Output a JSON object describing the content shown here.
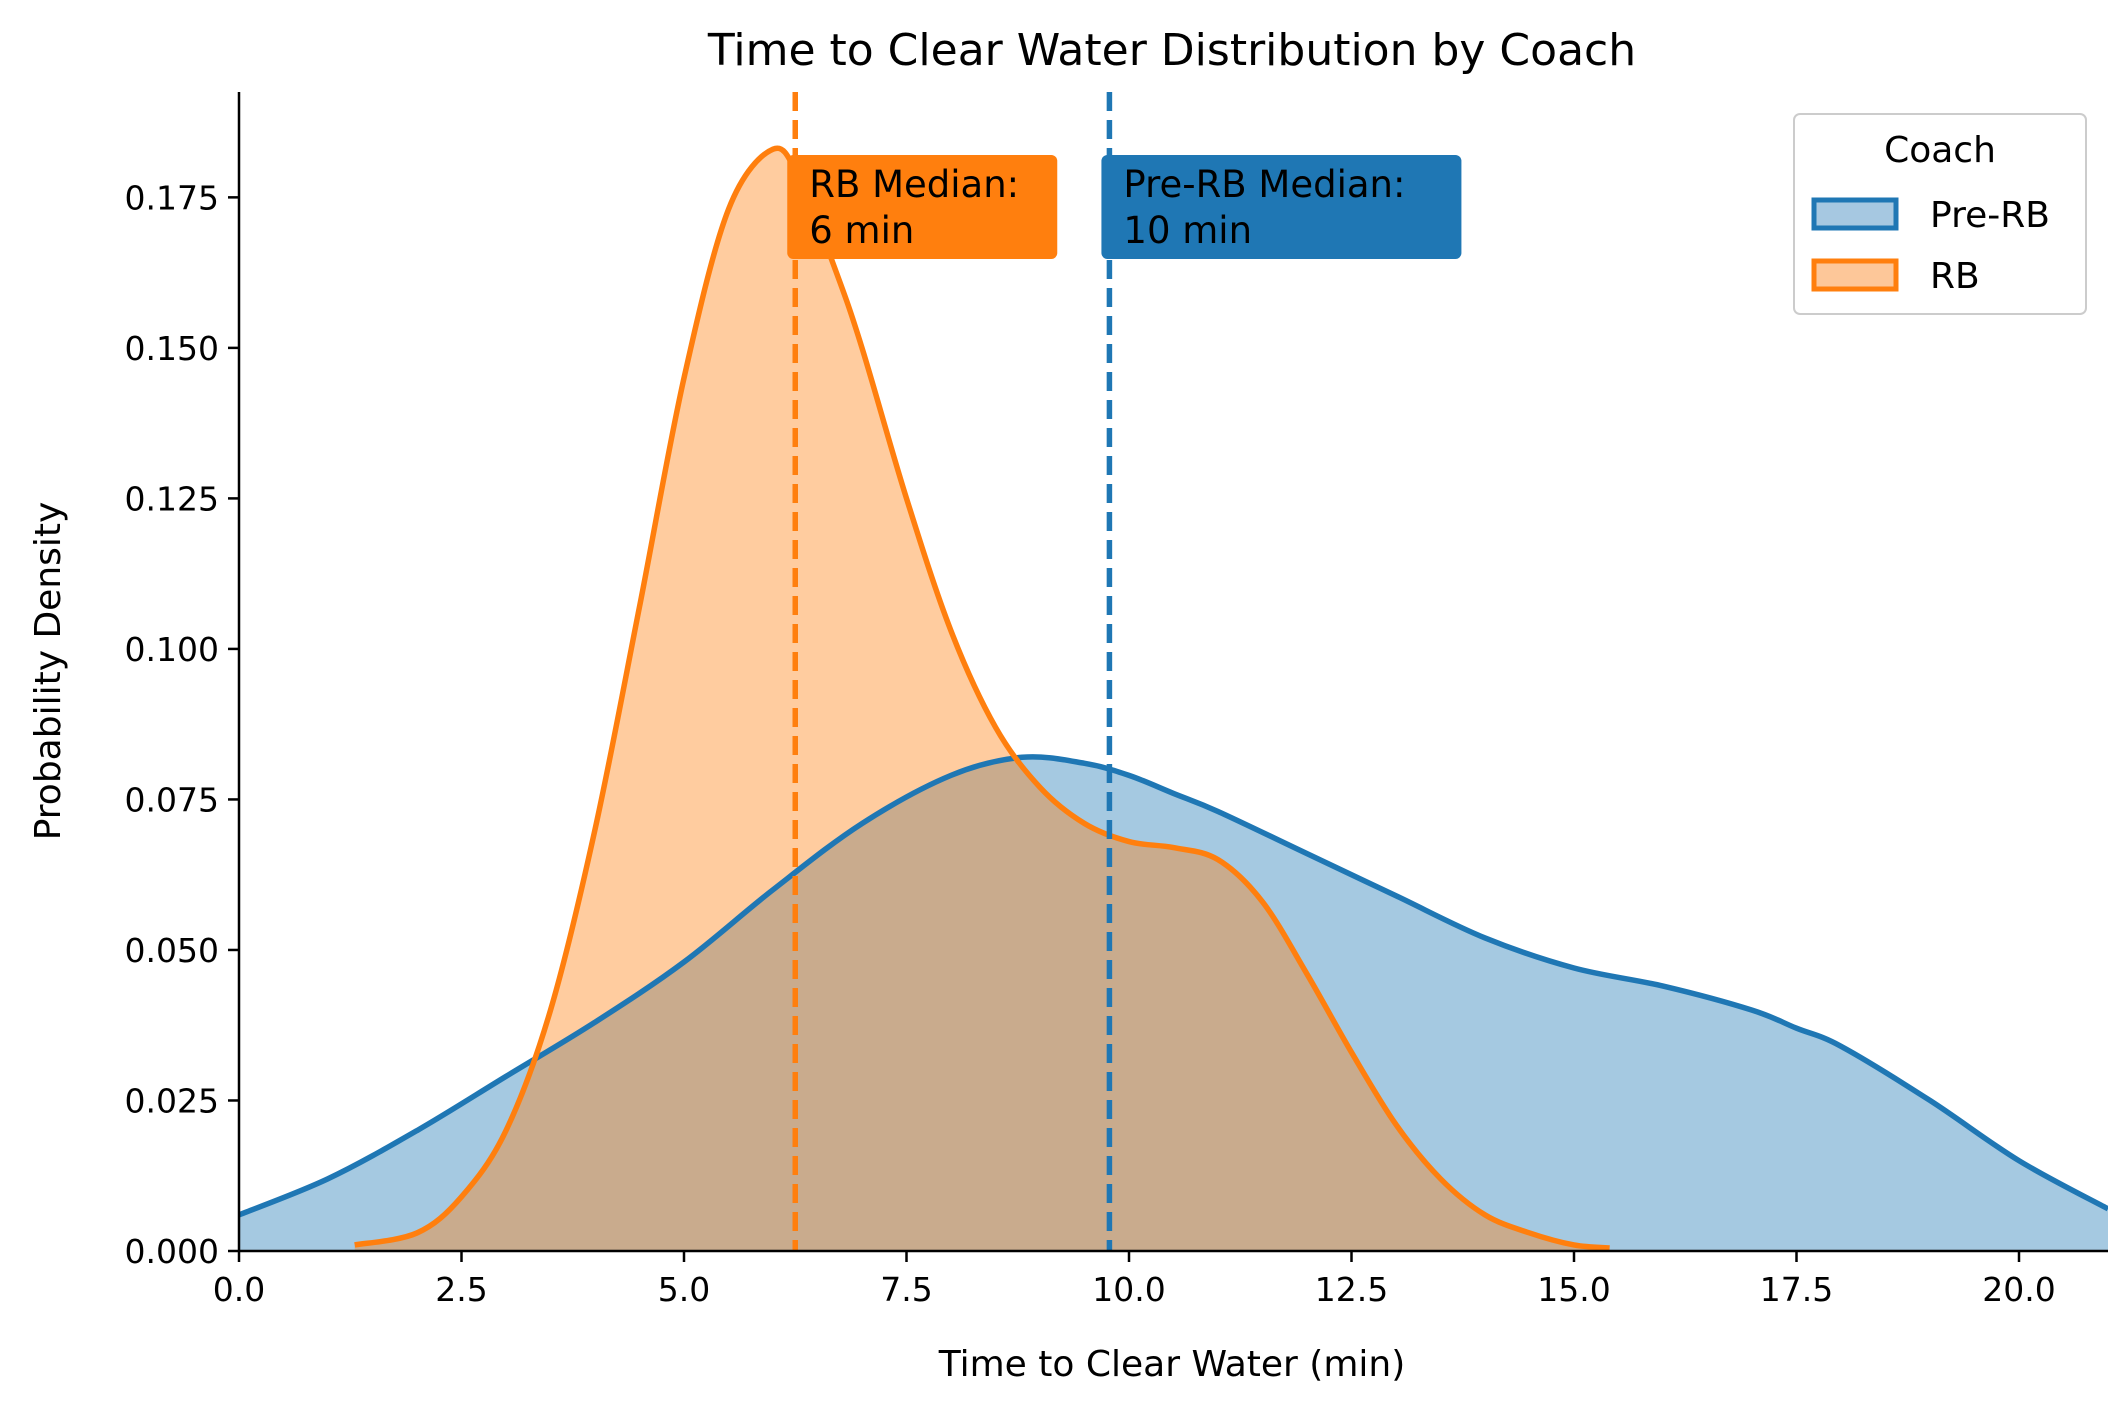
{
  "chart_data": {
    "type": "area",
    "title": "Time to Clear Water Distribution by Coach",
    "xlabel": "Time to Clear Water (min)",
    "ylabel": "Probability Density",
    "xlim": [
      0,
      21
    ],
    "ylim": [
      0,
      0.1925
    ],
    "x_ticks": [
      0,
      2.5,
      5,
      7.5,
      10,
      12.5,
      15,
      17.5,
      20
    ],
    "x_tick_labels": [
      "0.0",
      "2.5",
      "5.0",
      "7.5",
      "10.0",
      "12.5",
      "15.0",
      "17.5",
      "20.0"
    ],
    "y_ticks": [
      0,
      0.025,
      0.05,
      0.075,
      0.1,
      0.125,
      0.15,
      0.175
    ],
    "y_tick_labels": [
      "0.000",
      "0.025",
      "0.050",
      "0.075",
      "0.100",
      "0.125",
      "0.150",
      "0.175"
    ],
    "grid": false,
    "legend": {
      "title": "Coach",
      "position": "top-right"
    },
    "series": [
      {
        "name": "Pre-RB",
        "color": "#1f77b4",
        "fill_color": "#a6c8e1",
        "median": 9.78,
        "median_label": "Pre-RB Median:\n10 min",
        "x": [
          0,
          1,
          2,
          3,
          4,
          5,
          6,
          7,
          8,
          8.8,
          9.5,
          10,
          10.5,
          11,
          12,
          13,
          14,
          15,
          16,
          17,
          17.5,
          18,
          19,
          20,
          21
        ],
        "y": [
          0.006,
          0.012,
          0.02,
          0.029,
          0.038,
          0.048,
          0.06,
          0.071,
          0.079,
          0.082,
          0.081,
          0.079,
          0.076,
          0.073,
          0.066,
          0.059,
          0.052,
          0.047,
          0.044,
          0.04,
          0.037,
          0.034,
          0.025,
          0.015,
          0.007
        ]
      },
      {
        "name": "RB",
        "color": "#ff7f0e",
        "fill_color": "#fdc799",
        "median": 6.25,
        "median_label": "RB Median:\n6 min",
        "x": [
          1.3,
          2,
          2.5,
          3,
          3.5,
          4,
          4.5,
          5,
          5.5,
          6,
          6.3,
          6.7,
          7,
          7.5,
          8,
          8.5,
          9,
          9.5,
          10,
          10.5,
          11,
          11.5,
          12,
          12.5,
          13,
          13.5,
          14,
          14.5,
          15,
          15.4
        ],
        "y": [
          0.001,
          0.003,
          0.009,
          0.02,
          0.04,
          0.07,
          0.107,
          0.145,
          0.173,
          0.183,
          0.178,
          0.163,
          0.15,
          0.125,
          0.103,
          0.087,
          0.077,
          0.071,
          0.068,
          0.067,
          0.065,
          0.058,
          0.046,
          0.033,
          0.021,
          0.012,
          0.006,
          0.003,
          0.001,
          0.0005
        ]
      }
    ]
  }
}
